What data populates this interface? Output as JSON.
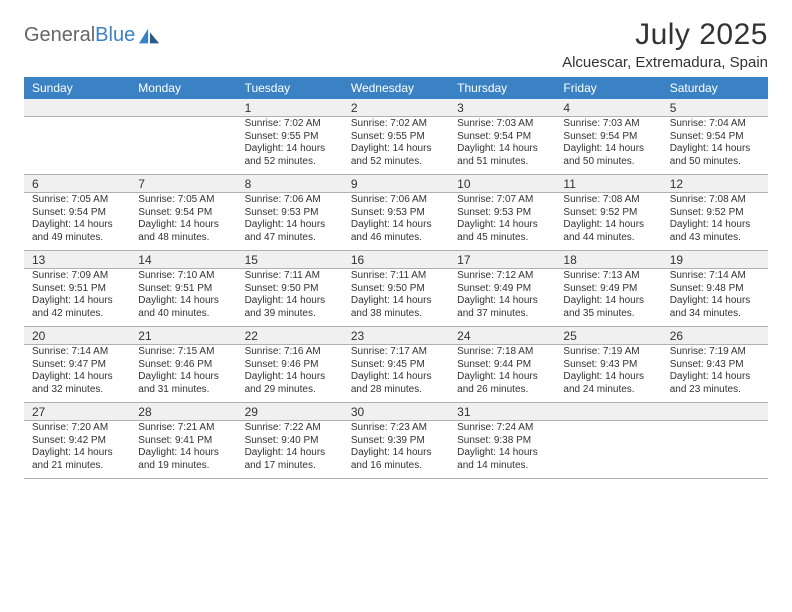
{
  "brand": {
    "text_gray": "General",
    "text_blue": "Blue"
  },
  "title": "July 2025",
  "location": "Alcuescar, Extremadura, Spain",
  "dayNames": [
    "Sunday",
    "Monday",
    "Tuesday",
    "Wednesday",
    "Thursday",
    "Friday",
    "Saturday"
  ],
  "colors": {
    "brand_blue": "#3b82c4",
    "row_alt": "#f0f0f0",
    "border": "#b0b0b0"
  },
  "weeks": [
    [
      null,
      null,
      {
        "n": "1",
        "sunrise": "Sunrise: 7:02 AM",
        "sunset": "Sunset: 9:55 PM",
        "day1": "Daylight: 14 hours",
        "day2": "and 52 minutes."
      },
      {
        "n": "2",
        "sunrise": "Sunrise: 7:02 AM",
        "sunset": "Sunset: 9:55 PM",
        "day1": "Daylight: 14 hours",
        "day2": "and 52 minutes."
      },
      {
        "n": "3",
        "sunrise": "Sunrise: 7:03 AM",
        "sunset": "Sunset: 9:54 PM",
        "day1": "Daylight: 14 hours",
        "day2": "and 51 minutes."
      },
      {
        "n": "4",
        "sunrise": "Sunrise: 7:03 AM",
        "sunset": "Sunset: 9:54 PM",
        "day1": "Daylight: 14 hours",
        "day2": "and 50 minutes."
      },
      {
        "n": "5",
        "sunrise": "Sunrise: 7:04 AM",
        "sunset": "Sunset: 9:54 PM",
        "day1": "Daylight: 14 hours",
        "day2": "and 50 minutes."
      }
    ],
    [
      {
        "n": "6",
        "sunrise": "Sunrise: 7:05 AM",
        "sunset": "Sunset: 9:54 PM",
        "day1": "Daylight: 14 hours",
        "day2": "and 49 minutes."
      },
      {
        "n": "7",
        "sunrise": "Sunrise: 7:05 AM",
        "sunset": "Sunset: 9:54 PM",
        "day1": "Daylight: 14 hours",
        "day2": "and 48 minutes."
      },
      {
        "n": "8",
        "sunrise": "Sunrise: 7:06 AM",
        "sunset": "Sunset: 9:53 PM",
        "day1": "Daylight: 14 hours",
        "day2": "and 47 minutes."
      },
      {
        "n": "9",
        "sunrise": "Sunrise: 7:06 AM",
        "sunset": "Sunset: 9:53 PM",
        "day1": "Daylight: 14 hours",
        "day2": "and 46 minutes."
      },
      {
        "n": "10",
        "sunrise": "Sunrise: 7:07 AM",
        "sunset": "Sunset: 9:53 PM",
        "day1": "Daylight: 14 hours",
        "day2": "and 45 minutes."
      },
      {
        "n": "11",
        "sunrise": "Sunrise: 7:08 AM",
        "sunset": "Sunset: 9:52 PM",
        "day1": "Daylight: 14 hours",
        "day2": "and 44 minutes."
      },
      {
        "n": "12",
        "sunrise": "Sunrise: 7:08 AM",
        "sunset": "Sunset: 9:52 PM",
        "day1": "Daylight: 14 hours",
        "day2": "and 43 minutes."
      }
    ],
    [
      {
        "n": "13",
        "sunrise": "Sunrise: 7:09 AM",
        "sunset": "Sunset: 9:51 PM",
        "day1": "Daylight: 14 hours",
        "day2": "and 42 minutes."
      },
      {
        "n": "14",
        "sunrise": "Sunrise: 7:10 AM",
        "sunset": "Sunset: 9:51 PM",
        "day1": "Daylight: 14 hours",
        "day2": "and 40 minutes."
      },
      {
        "n": "15",
        "sunrise": "Sunrise: 7:11 AM",
        "sunset": "Sunset: 9:50 PM",
        "day1": "Daylight: 14 hours",
        "day2": "and 39 minutes."
      },
      {
        "n": "16",
        "sunrise": "Sunrise: 7:11 AM",
        "sunset": "Sunset: 9:50 PM",
        "day1": "Daylight: 14 hours",
        "day2": "and 38 minutes."
      },
      {
        "n": "17",
        "sunrise": "Sunrise: 7:12 AM",
        "sunset": "Sunset: 9:49 PM",
        "day1": "Daylight: 14 hours",
        "day2": "and 37 minutes."
      },
      {
        "n": "18",
        "sunrise": "Sunrise: 7:13 AM",
        "sunset": "Sunset: 9:49 PM",
        "day1": "Daylight: 14 hours",
        "day2": "and 35 minutes."
      },
      {
        "n": "19",
        "sunrise": "Sunrise: 7:14 AM",
        "sunset": "Sunset: 9:48 PM",
        "day1": "Daylight: 14 hours",
        "day2": "and 34 minutes."
      }
    ],
    [
      {
        "n": "20",
        "sunrise": "Sunrise: 7:14 AM",
        "sunset": "Sunset: 9:47 PM",
        "day1": "Daylight: 14 hours",
        "day2": "and 32 minutes."
      },
      {
        "n": "21",
        "sunrise": "Sunrise: 7:15 AM",
        "sunset": "Sunset: 9:46 PM",
        "day1": "Daylight: 14 hours",
        "day2": "and 31 minutes."
      },
      {
        "n": "22",
        "sunrise": "Sunrise: 7:16 AM",
        "sunset": "Sunset: 9:46 PM",
        "day1": "Daylight: 14 hours",
        "day2": "and 29 minutes."
      },
      {
        "n": "23",
        "sunrise": "Sunrise: 7:17 AM",
        "sunset": "Sunset: 9:45 PM",
        "day1": "Daylight: 14 hours",
        "day2": "and 28 minutes."
      },
      {
        "n": "24",
        "sunrise": "Sunrise: 7:18 AM",
        "sunset": "Sunset: 9:44 PM",
        "day1": "Daylight: 14 hours",
        "day2": "and 26 minutes."
      },
      {
        "n": "25",
        "sunrise": "Sunrise: 7:19 AM",
        "sunset": "Sunset: 9:43 PM",
        "day1": "Daylight: 14 hours",
        "day2": "and 24 minutes."
      },
      {
        "n": "26",
        "sunrise": "Sunrise: 7:19 AM",
        "sunset": "Sunset: 9:43 PM",
        "day1": "Daylight: 14 hours",
        "day2": "and 23 minutes."
      }
    ],
    [
      {
        "n": "27",
        "sunrise": "Sunrise: 7:20 AM",
        "sunset": "Sunset: 9:42 PM",
        "day1": "Daylight: 14 hours",
        "day2": "and 21 minutes."
      },
      {
        "n": "28",
        "sunrise": "Sunrise: 7:21 AM",
        "sunset": "Sunset: 9:41 PM",
        "day1": "Daylight: 14 hours",
        "day2": "and 19 minutes."
      },
      {
        "n": "29",
        "sunrise": "Sunrise: 7:22 AM",
        "sunset": "Sunset: 9:40 PM",
        "day1": "Daylight: 14 hours",
        "day2": "and 17 minutes."
      },
      {
        "n": "30",
        "sunrise": "Sunrise: 7:23 AM",
        "sunset": "Sunset: 9:39 PM",
        "day1": "Daylight: 14 hours",
        "day2": "and 16 minutes."
      },
      {
        "n": "31",
        "sunrise": "Sunrise: 7:24 AM",
        "sunset": "Sunset: 9:38 PM",
        "day1": "Daylight: 14 hours",
        "day2": "and 14 minutes."
      },
      null,
      null
    ]
  ]
}
